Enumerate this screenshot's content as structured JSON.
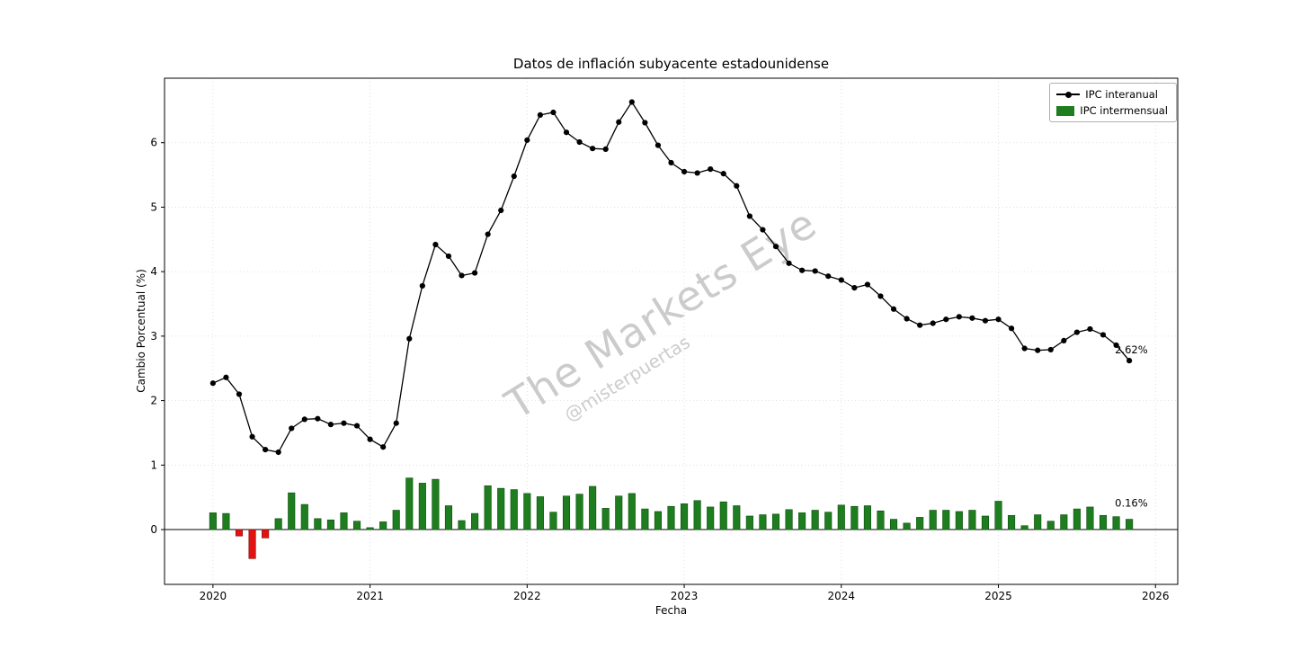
{
  "figure": {
    "title": "Datos de inflación subyacente estadounidense",
    "xlabel": "Fecha",
    "ylabel": "Cambio Porcentual (%)"
  },
  "legend": {
    "items": [
      {
        "label": "IPC interanual",
        "type": "line"
      },
      {
        "label": "IPC intermensual",
        "type": "bar"
      }
    ]
  },
  "watermark": {
    "main": "The Markets Eye",
    "handle": "@misterpuertas"
  },
  "colors": {
    "line": "#000000",
    "bar_positive": "#1e7d1e",
    "bar_negative": "#e01212",
    "grid": "#d9d9d9",
    "spine": "#000000",
    "zero_line": "#000000"
  },
  "annotations": [
    {
      "text": "2.62%",
      "series": 0,
      "index": 70
    },
    {
      "text": "0.16%",
      "series": 1,
      "index": 70
    }
  ],
  "chart_data": {
    "type": "line+bar",
    "title": "Datos de inflación subyacente estadounidense",
    "xlabel": "Fecha",
    "ylabel": "Cambio Porcentual (%)",
    "x_start": "2020-01",
    "x_freq": "monthly",
    "x_tick_labels": [
      "2020",
      "2021",
      "2022",
      "2023",
      "2024",
      "2025",
      "2026"
    ],
    "y_tick_labels": [
      "0",
      "1",
      "2",
      "3",
      "4",
      "5",
      "6"
    ],
    "y_tick_values": [
      0,
      1,
      2,
      3,
      4,
      5,
      6
    ],
    "ylim": [
      -0.85,
      7.0
    ],
    "grid": "dotted",
    "legend_position": "upper right",
    "series": [
      {
        "name": "IPC interanual",
        "type": "line",
        "color": "#000000",
        "values": [
          2.27,
          2.36,
          2.1,
          1.44,
          1.24,
          1.2,
          1.57,
          1.71,
          1.72,
          1.63,
          1.65,
          1.61,
          1.4,
          1.28,
          1.65,
          2.96,
          3.78,
          4.42,
          4.24,
          3.94,
          3.98,
          4.58,
          4.95,
          5.48,
          6.04,
          6.43,
          6.47,
          6.16,
          6.01,
          5.91,
          5.9,
          6.32,
          6.63,
          6.31,
          5.96,
          5.69,
          5.55,
          5.53,
          5.59,
          5.52,
          5.33,
          4.86,
          4.65,
          4.39,
          4.13,
          4.02,
          4.01,
          3.93,
          3.87,
          3.75,
          3.8,
          3.62,
          3.42,
          3.27,
          3.17,
          3.2,
          3.26,
          3.3,
          3.28,
          3.24,
          3.26,
          3.12,
          2.81,
          2.78,
          2.79,
          2.93,
          3.06,
          3.11,
          3.02,
          2.86,
          2.62
        ]
      },
      {
        "name": "IPC intermensual",
        "type": "bar",
        "color_positive": "#1e7d1e",
        "color_negative": "#e01212",
        "values": [
          0.26,
          0.25,
          -0.1,
          -0.45,
          -0.13,
          0.17,
          0.57,
          0.39,
          0.17,
          0.15,
          0.26,
          0.13,
          0.03,
          0.12,
          0.3,
          0.8,
          0.72,
          0.78,
          0.37,
          0.14,
          0.25,
          0.68,
          0.64,
          0.62,
          0.56,
          0.51,
          0.27,
          0.52,
          0.55,
          0.67,
          0.33,
          0.52,
          0.56,
          0.32,
          0.28,
          0.36,
          0.4,
          0.45,
          0.35,
          0.43,
          0.37,
          0.21,
          0.23,
          0.24,
          0.31,
          0.26,
          0.3,
          0.27,
          0.38,
          0.36,
          0.37,
          0.29,
          0.16,
          0.1,
          0.19,
          0.3,
          0.3,
          0.28,
          0.3,
          0.21,
          0.44,
          0.22,
          0.06,
          0.23,
          0.13,
          0.23,
          0.32,
          0.35,
          0.22,
          0.2,
          0.16
        ]
      }
    ]
  }
}
